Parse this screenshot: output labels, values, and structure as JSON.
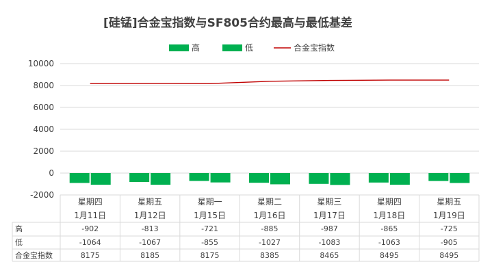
{
  "chart_data": {
    "type": "bar",
    "title": "[硅锰]合金宝指数与SF805合约最高与最低基差",
    "xlabel": "",
    "ylabel": "",
    "ylim": [
      -2000,
      10000
    ],
    "yticks": [
      10000,
      8000,
      6000,
      4000,
      2000,
      0,
      -2000
    ],
    "grid": true,
    "legend_position": "top",
    "categories": [
      {
        "weekday": "星期四",
        "date": "1月11日"
      },
      {
        "weekday": "星期五",
        "date": "1月12日"
      },
      {
        "weekday": "星期一",
        "date": "1月15日"
      },
      {
        "weekday": "星期二",
        "date": "1月16日"
      },
      {
        "weekday": "星期三",
        "date": "1月17日"
      },
      {
        "weekday": "星期四",
        "date": "1月18日"
      },
      {
        "weekday": "星期五",
        "date": "1月19日"
      }
    ],
    "series": [
      {
        "name": "高",
        "type": "bar",
        "color": "#00B050",
        "values": [
          -902,
          -813,
          -721,
          -885,
          -987,
          -865,
          -725
        ]
      },
      {
        "name": "低",
        "type": "bar",
        "color": "#00B050",
        "values": [
          -1064,
          -1067,
          -855,
          -1027,
          -1083,
          -1063,
          -905
        ]
      },
      {
        "name": "合金宝指数",
        "type": "line",
        "color": "#C00000",
        "values": [
          8175,
          8185,
          8175,
          8385,
          8465,
          8495,
          8495
        ]
      }
    ]
  }
}
